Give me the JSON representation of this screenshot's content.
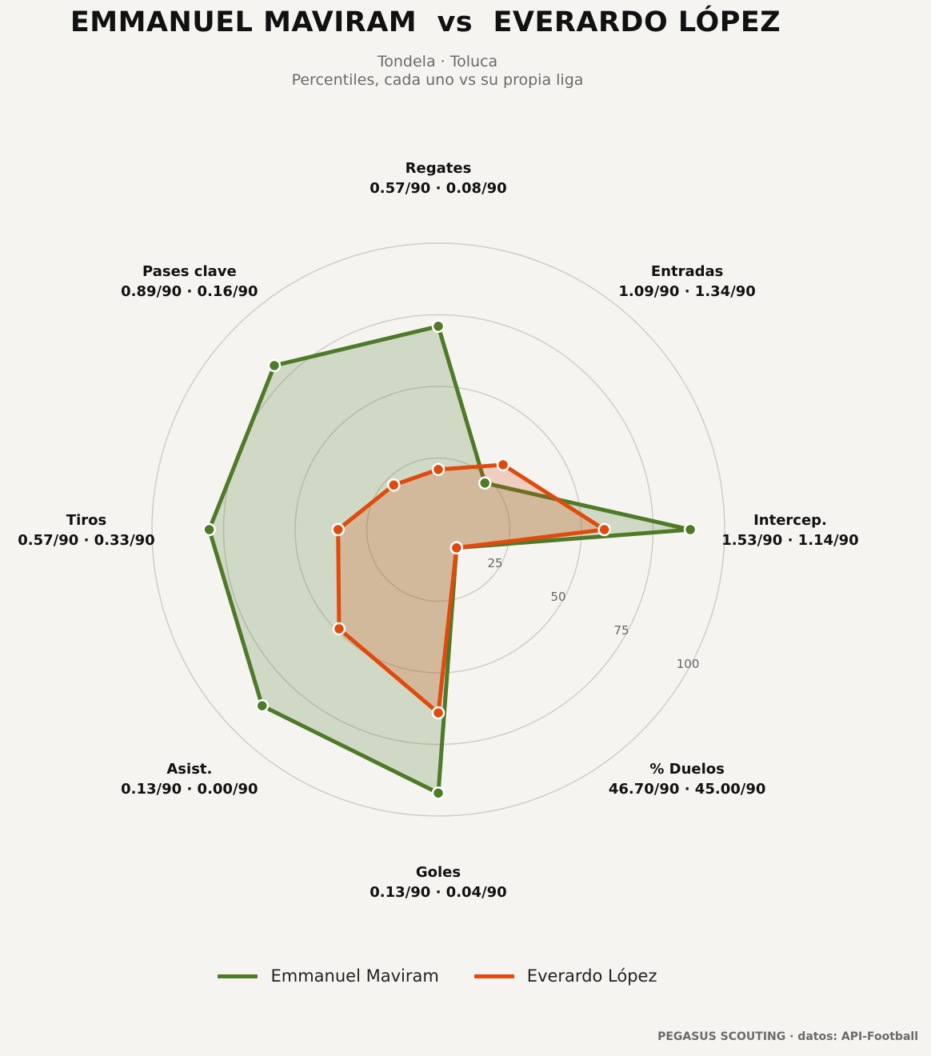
{
  "header": {
    "title": "EMMANUEL MAVIRAM  vs  EVERARDO LÓPEZ",
    "subtitle_line1": "Tondela · Toluca",
    "subtitle_line2": "Percentiles, cada uno vs su propia liga"
  },
  "footer": {
    "credit": "PEGASUS SCOUTING · datos: API-Football"
  },
  "colors": {
    "background": "#f5f4f1",
    "player1": "#4f7a28",
    "player2": "#e04a0c",
    "grid": "#cfcdc8"
  },
  "chart_data": {
    "type": "radar",
    "title": "EMMANUEL MAVIRAM  vs  EVERARDO LÓPEZ",
    "scale": {
      "min": 0,
      "max": 100,
      "ring_labels": [
        "25",
        "50",
        "75",
        "100"
      ]
    },
    "axes": [
      {
        "name": "Regates",
        "values_text": "0.57/90 · 0.08/90"
      },
      {
        "name": "Entradas",
        "values_text": "1.09/90 · 1.34/90"
      },
      {
        "name": "Intercep.",
        "values_text": "1.53/90 · 1.14/90"
      },
      {
        "name": "% Duelos",
        "values_text": "46.70/90 · 45.00/90"
      },
      {
        "name": "Goles",
        "values_text": "0.13/90 · 0.04/90"
      },
      {
        "name": "Asist.",
        "values_text": "0.13/90 · 0.00/90"
      },
      {
        "name": "Tiros",
        "values_text": "0.57/90 · 0.33/90"
      },
      {
        "name": "Pases clave",
        "values_text": "0.89/90 · 0.16/90"
      }
    ],
    "series": [
      {
        "name": "Emmanuel Maviram",
        "color": "#4f7a28",
        "values": [
          71,
          23,
          88,
          9,
          92,
          87,
          80,
          81
        ]
      },
      {
        "name": "Everardo López",
        "color": "#e04a0c",
        "values": [
          21,
          32,
          58,
          9,
          64,
          49,
          35,
          22
        ]
      }
    ],
    "legend_position": "bottom-center",
    "grid": true
  }
}
